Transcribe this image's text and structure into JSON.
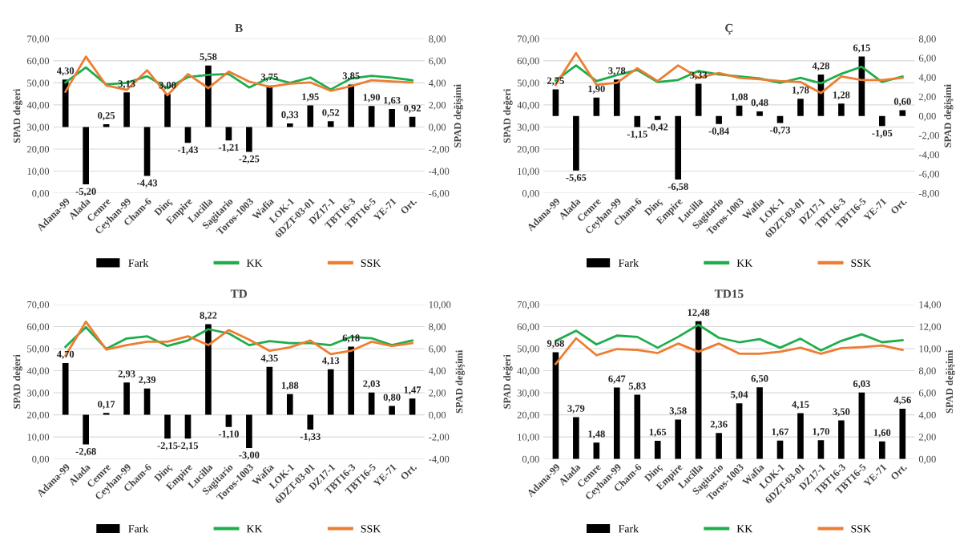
{
  "chart_data": [
    {
      "type": "bar",
      "title": "B",
      "ylabel": "SPAD değeri",
      "y2label": "SPAD değişimi",
      "grid": "y",
      "legend": "bottom",
      "categories": [
        "Adana-99",
        "Alada",
        "Cemre",
        "Ceyhan-99",
        "Cham-6",
        "Dinç",
        "Empire",
        "Lucilla",
        "Sagitario",
        "Toros-1003",
        "Wafia",
        "LOK-1",
        "6DZT-03-01",
        "DZ17-1",
        "TBT16-3",
        "TBT16-5",
        "YE-71",
        "Ort."
      ],
      "ylim": [
        0,
        70
      ],
      "yticks": [
        {
          "value": 0,
          "label": "0,00"
        },
        {
          "value": 10,
          "label": "10,00"
        },
        {
          "value": 20,
          "label": "20,00"
        },
        {
          "value": 30,
          "label": "30,00"
        },
        {
          "value": 40,
          "label": "40,00"
        },
        {
          "value": 50,
          "label": "50,00"
        },
        {
          "value": 60,
          "label": "60,00"
        },
        {
          "value": 70,
          "label": "70,00"
        }
      ],
      "y2lim": [
        -6,
        8
      ],
      "y2ticks": [
        {
          "value": -6,
          "label": "-6,00"
        },
        {
          "value": -4,
          "label": "-4,00"
        },
        {
          "value": -2,
          "label": "-2,00"
        },
        {
          "value": 0,
          "label": "0,00"
        },
        {
          "value": 2,
          "label": "2,00"
        },
        {
          "value": 4,
          "label": "4,00"
        },
        {
          "value": 6,
          "label": "6,00"
        },
        {
          "value": 8,
          "label": "8,00"
        }
      ],
      "series": [
        {
          "name": "Fark",
          "axis": "y2",
          "color": "#000000",
          "values": [
            4.3,
            -5.2,
            0.25,
            3.13,
            -4.43,
            3.0,
            -1.43,
            5.58,
            -1.21,
            -2.25,
            3.75,
            0.33,
            1.95,
            0.52,
            3.85,
            1.9,
            1.63,
            0.92
          ],
          "value_labels": [
            "4,30",
            "-5,20",
            "0,25",
            "3,13",
            "-4,43",
            "3,00",
            "-1,43",
            "5,58",
            "-1,21",
            "-2,25",
            "3,75",
            "0,33",
            "1,95",
            "0,52",
            "3,85",
            "1,90",
            "1,63",
            "0,92"
          ]
        },
        {
          "name": "KK",
          "type": "line",
          "color": "#1fad4b",
          "values": [
            50.2,
            57.0,
            49.3,
            50.0,
            53.0,
            47.6,
            52.6,
            53.6,
            54.0,
            47.9,
            52.4,
            50.0,
            52.4,
            47.0,
            52.0,
            53.2,
            52.4,
            51.2
          ]
        },
        {
          "name": "SSK",
          "type": "line",
          "color": "#ed7d31",
          "values": [
            46.0,
            61.9,
            48.8,
            46.8,
            55.7,
            44.4,
            54.0,
            47.6,
            55.1,
            50.6,
            48.2,
            49.6,
            50.2,
            46.4,
            48.5,
            51.2,
            50.6,
            50.2
          ]
        }
      ]
    },
    {
      "type": "bar",
      "title": "Ç",
      "ylabel": "SPAD değeri",
      "y2label": "SPAD değişimi",
      "grid": "y",
      "legend": "bottom",
      "categories": [
        "Adana-99",
        "Alada",
        "Cemre",
        "Ceyhan-99",
        "Cham-6",
        "Dinç",
        "Empire",
        "Lucilla",
        "Sagitario",
        "Toros-1003",
        "Wafia",
        "LOK-1",
        "6DZT-03-01",
        "DZ17-1",
        "TBT16-3",
        "TBT16-5",
        "YE-71",
        "Ort."
      ],
      "ylim": [
        0,
        70
      ],
      "yticks": [
        {
          "value": 0,
          "label": "0,00"
        },
        {
          "value": 10,
          "label": "10,00"
        },
        {
          "value": 20,
          "label": "20,00"
        },
        {
          "value": 30,
          "label": "30,00"
        },
        {
          "value": 40,
          "label": "40,00"
        },
        {
          "value": 50,
          "label": "50,00"
        },
        {
          "value": 60,
          "label": "60,00"
        },
        {
          "value": 70,
          "label": "70,00"
        }
      ],
      "y2lim": [
        -8,
        8
      ],
      "y2ticks": [
        {
          "value": -8,
          "label": "-8,00"
        },
        {
          "value": -6,
          "label": "-6,00"
        },
        {
          "value": -4,
          "label": "-4,00"
        },
        {
          "value": -2,
          "label": "-2,00"
        },
        {
          "value": 0,
          "label": "0,00"
        },
        {
          "value": 2,
          "label": "2,00"
        },
        {
          "value": 4,
          "label": "4,00"
        },
        {
          "value": 6,
          "label": "6,00"
        },
        {
          "value": 8,
          "label": "8,00"
        }
      ],
      "series": [
        {
          "name": "Fark",
          "axis": "y2",
          "color": "#000000",
          "values": [
            2.75,
            -5.65,
            1.9,
            3.78,
            -1.15,
            -0.42,
            -6.58,
            3.33,
            -0.84,
            1.08,
            0.48,
            -0.73,
            1.78,
            4.28,
            1.28,
            6.15,
            -1.05,
            0.6
          ],
          "value_labels": [
            "2,75",
            "-5,65",
            "1,90",
            "3,78",
            "-1,15",
            "-0,42",
            "-6,58",
            "3,33",
            "-0,84",
            "1,08",
            "0,48",
            "-0,73",
            "1,78",
            "4,28",
            "1,28",
            "6,15",
            "-1,05",
            "0,60"
          ]
        },
        {
          "name": "KK",
          "type": "line",
          "color": "#1fad4b",
          "values": [
            51.0,
            57.9,
            50.8,
            53.5,
            55.8,
            50.4,
            51.3,
            55.4,
            53.8,
            52.9,
            52.0,
            50.0,
            52.3,
            49.8,
            54.1,
            57.3,
            50.4,
            52.9
          ]
        },
        {
          "name": "SSK",
          "type": "line",
          "color": "#ed7d31",
          "values": [
            49.1,
            63.5,
            49.1,
            50.0,
            56.6,
            50.8,
            57.9,
            52.3,
            54.5,
            52.3,
            51.6,
            50.8,
            50.4,
            45.4,
            52.9,
            51.3,
            51.3,
            52.3
          ]
        }
      ]
    },
    {
      "type": "bar",
      "title": "TD",
      "ylabel": "SPAD değeri",
      "y2label": "SPAD değişimi",
      "grid": "y",
      "legend": "bottom",
      "categories": [
        "Adana-99",
        "Alada",
        "Cemre",
        "Ceyhan-99",
        "Cham-6",
        "Dinç",
        "Empire",
        "Lucilla",
        "Sagitario",
        "Toros-1003",
        "Wafia",
        "LOK-1",
        "6DZT-03-01",
        "DZ17-1",
        "TBT16-3",
        "TBT16-5",
        "YE-71",
        "Ort."
      ],
      "ylim": [
        0,
        70
      ],
      "yticks": [
        {
          "value": 0,
          "label": "0,00"
        },
        {
          "value": 10,
          "label": "10,00"
        },
        {
          "value": 20,
          "label": "20,00"
        },
        {
          "value": 30,
          "label": "30,00"
        },
        {
          "value": 40,
          "label": "40,00"
        },
        {
          "value": 50,
          "label": "50,00"
        },
        {
          "value": 60,
          "label": "60,00"
        },
        {
          "value": 70,
          "label": "70,00"
        }
      ],
      "y2lim": [
        -4,
        10
      ],
      "y2ticks": [
        {
          "value": -4,
          "label": "-4,00"
        },
        {
          "value": -2,
          "label": "-2,00"
        },
        {
          "value": 0,
          "label": "0,00"
        },
        {
          "value": 2,
          "label": "2,00"
        },
        {
          "value": 4,
          "label": "4,00"
        },
        {
          "value": 6,
          "label": "6,00"
        },
        {
          "value": 8,
          "label": "8,00"
        },
        {
          "value": 10,
          "label": "10,00"
        }
      ],
      "series": [
        {
          "name": "Fark",
          "axis": "y2",
          "color": "#000000",
          "values": [
            4.7,
            -2.68,
            0.17,
            2.93,
            2.39,
            -2.15,
            -2.15,
            8.22,
            -1.1,
            -3.0,
            4.35,
            1.88,
            -1.33,
            4.13,
            6.18,
            2.03,
            0.8,
            1.47
          ],
          "value_labels": [
            "4,70",
            "-2,68",
            "0,17",
            "2,93",
            "2,39",
            "-2,15",
            "-2,15",
            "8,22",
            "-1,10",
            "-3,00",
            "4,35",
            "1,88",
            "-1,33",
            "4,13",
            "6,18",
            "2,03",
            "0,80",
            "1,47"
          ]
        },
        {
          "name": "KK",
          "type": "line",
          "color": "#1fad4b",
          "values": [
            50.8,
            59.7,
            49.9,
            54.6,
            55.6,
            51.2,
            53.7,
            58.8,
            56.9,
            51.6,
            53.4,
            52.5,
            52.5,
            51.6,
            55.3,
            54.7,
            51.6,
            53.7
          ]
        },
        {
          "name": "SSK",
          "type": "line",
          "color": "#ed7d31",
          "values": [
            46.8,
            62.2,
            49.6,
            51.6,
            53.1,
            53.1,
            55.6,
            51.6,
            58.4,
            54.1,
            49.0,
            50.6,
            53.7,
            47.5,
            49.0,
            53.1,
            51.2,
            52.5
          ]
        }
      ]
    },
    {
      "type": "bar",
      "title": "TD15",
      "ylabel": "SPAD değeri",
      "y2label": "SPAD değişimi",
      "grid": "y",
      "legend": "bottom",
      "categories": [
        "Adana-99",
        "Alada",
        "Cemre",
        "Ceyhan-99",
        "Cham-6",
        "Dinç",
        "Empire",
        "Lucilla",
        "Sagitario",
        "Toros-1003",
        "Wafia",
        "LOK-1",
        "6DZT-03-01",
        "DZ17-1",
        "TBT16-3",
        "TBT16-5",
        "YE-71",
        "Ort."
      ],
      "ylim": [
        0,
        70
      ],
      "yticks": [
        {
          "value": 0,
          "label": "0,00"
        },
        {
          "value": 10,
          "label": "10,00"
        },
        {
          "value": 20,
          "label": "20,00"
        },
        {
          "value": 30,
          "label": "30,00"
        },
        {
          "value": 40,
          "label": "40,00"
        },
        {
          "value": 50,
          "label": "50,00"
        },
        {
          "value": 60,
          "label": "60,00"
        },
        {
          "value": 70,
          "label": "70,00"
        }
      ],
      "y2lim": [
        0,
        14
      ],
      "y2ticks": [
        {
          "value": 0,
          "label": "0,00"
        },
        {
          "value": 2,
          "label": "2,00"
        },
        {
          "value": 4,
          "label": "4,00"
        },
        {
          "value": 6,
          "label": "6,00"
        },
        {
          "value": 8,
          "label": "8,00"
        },
        {
          "value": 10,
          "label": "10,00"
        },
        {
          "value": 12,
          "label": "12,00"
        },
        {
          "value": 14,
          "label": "14,00"
        }
      ],
      "series": [
        {
          "name": "Fark",
          "axis": "y2",
          "color": "#000000",
          "values": [
            9.68,
            3.79,
            1.48,
            6.47,
            5.83,
            1.65,
            3.58,
            12.48,
            2.36,
            5.04,
            6.5,
            1.67,
            4.15,
            1.7,
            3.5,
            6.03,
            1.6,
            4.56
          ],
          "value_labels": [
            "9,68",
            "3,79",
            "1,48",
            "6,47",
            "5,83",
            "1,65",
            "3,58",
            "12,48",
            "2,36",
            "5,04",
            "6,50",
            "1,67",
            "4,15",
            "1,70",
            "3,50",
            "6,03",
            "1,60",
            "4,56"
          ]
        },
        {
          "name": "KK",
          "type": "line",
          "color": "#1fad4b",
          "values": [
            53.5,
            58.1,
            51.9,
            55.9,
            55.3,
            50.4,
            55.3,
            60.8,
            54.9,
            52.9,
            54.3,
            50.4,
            54.5,
            49.2,
            53.5,
            56.5,
            52.9,
            53.8
          ]
        },
        {
          "name": "SSK",
          "type": "line",
          "color": "#ed7d31",
          "values": [
            43.1,
            54.7,
            47.0,
            49.8,
            49.4,
            48.0,
            52.3,
            48.6,
            52.3,
            47.7,
            47.7,
            48.6,
            50.4,
            47.7,
            50.2,
            50.7,
            51.4,
            49.4
          ]
        }
      ]
    }
  ]
}
